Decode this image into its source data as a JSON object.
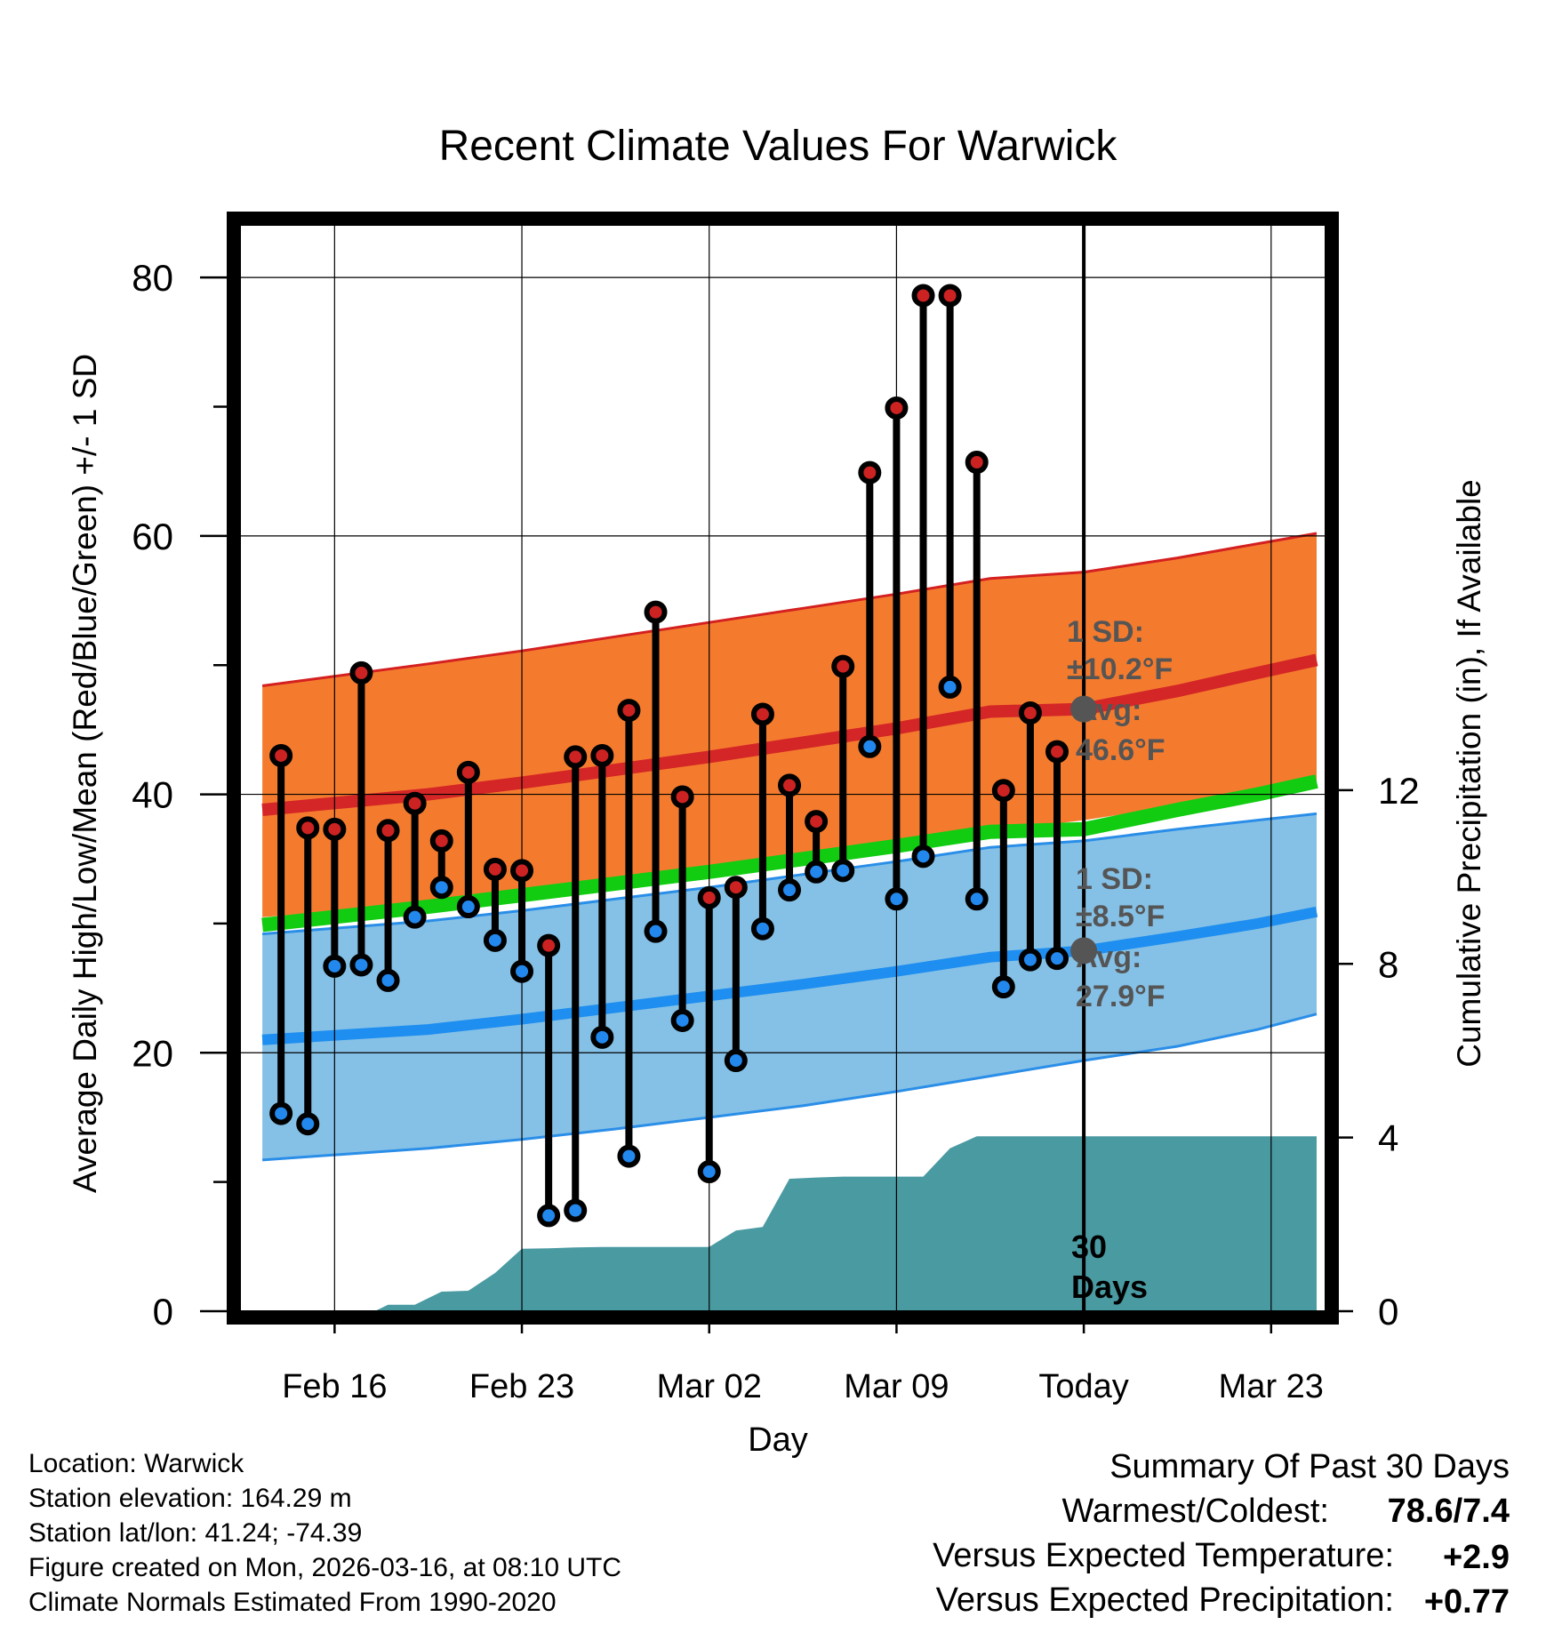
{
  "chart_data": {
    "type": "line",
    "title": "Recent Climate Values For Warwick",
    "xlabel": "Day",
    "ylabel": "Average Daily High/Low/Mean (Red/Blue/Green) +/- 1 SD",
    "ylabel_right": "Cumulative Precipitation (in), If Available",
    "ylim": [
      0,
      84
    ],
    "ylim_right": [
      0,
      25
    ],
    "xlim_day_offset": [
      -3.5,
      37
    ],
    "yticks_labeled": [
      "0",
      "20",
      "40",
      "60",
      "80"
    ],
    "yticks_right": [
      "0",
      "4",
      "8",
      "12"
    ],
    "xticks": [
      {
        "label": "Feb 16",
        "day": 0
      },
      {
        "label": "Feb 23",
        "day": 7
      },
      {
        "label": "Mar 02",
        "day": 14
      },
      {
        "label": "Mar 09",
        "day": 21
      },
      {
        "label": "Today",
        "day": 28
      },
      {
        "label": "Mar 23",
        "day": 35
      }
    ],
    "normals": {
      "day": [
        -2.7,
        3.5,
        7,
        10.5,
        14,
        17.5,
        21,
        24.5,
        28,
        31.5,
        34.5,
        36.7
      ],
      "high_mean": [
        38.8,
        40.0,
        40.9,
        41.9,
        42.9,
        44.0,
        45.1,
        46.4,
        46.6,
        48.0,
        49.4,
        50.4
      ],
      "high_upper": [
        48.4,
        50.1,
        51.1,
        52.2,
        53.3,
        54.4,
        55.5,
        56.7,
        57.2,
        58.3,
        59.4,
        60.2
      ],
      "high_lower": [
        30.5,
        31.5,
        32.3,
        33.2,
        34.0,
        35.0,
        36.0,
        37.1,
        38.0,
        39.1,
        40.2,
        41.0
      ],
      "mean": [
        29.9,
        31.3,
        32.2,
        33.1,
        34.0,
        35.0,
        36.0,
        37.1,
        37.3,
        38.8,
        40.0,
        41.0
      ],
      "low_mean": [
        21.0,
        21.8,
        22.6,
        23.5,
        24.4,
        25.3,
        26.3,
        27.4,
        27.9,
        29.0,
        30.0,
        30.9
      ],
      "low_upper": [
        29.2,
        30.2,
        31.0,
        31.9,
        32.8,
        33.8,
        34.8,
        35.9,
        36.4,
        37.3,
        38.0,
        38.5
      ],
      "low_lower": [
        11.7,
        12.6,
        13.3,
        14.1,
        15.0,
        15.9,
        17.0,
        18.2,
        19.4,
        20.5,
        21.8,
        23.0
      ]
    },
    "series": [
      {
        "name": "Daily High",
        "color": "#cc2222",
        "day": [
          -2,
          -1,
          0,
          1,
          2,
          3,
          4,
          5,
          6,
          7,
          8,
          9,
          10,
          11,
          12,
          13,
          14,
          15,
          16,
          17,
          18,
          19,
          20,
          21,
          22,
          23,
          24,
          25,
          26,
          27
        ],
        "values": [
          43.0,
          37.4,
          37.3,
          49.4,
          37.2,
          39.3,
          36.4,
          41.7,
          34.2,
          34.1,
          28.3,
          42.9,
          43.0,
          46.5,
          54.1,
          39.8,
          32.0,
          32.8,
          46.2,
          40.7,
          37.9,
          49.9,
          64.9,
          69.9,
          78.6,
          78.6,
          65.7,
          40.3,
          46.3,
          43.3
        ]
      },
      {
        "name": "Daily Low",
        "color": "#2288ee",
        "day": [
          -2,
          -1,
          0,
          1,
          2,
          3,
          4,
          5,
          6,
          7,
          8,
          9,
          10,
          11,
          12,
          13,
          14,
          15,
          16,
          17,
          18,
          19,
          20,
          21,
          22,
          23,
          24,
          25,
          26,
          27
        ],
        "values": [
          15.3,
          14.5,
          26.7,
          26.8,
          25.6,
          30.5,
          32.8,
          31.3,
          28.7,
          26.3,
          7.4,
          7.8,
          21.2,
          12.0,
          29.4,
          22.5,
          10.8,
          19.4,
          29.6,
          32.6,
          34.0,
          34.1,
          43.7,
          31.9,
          35.2,
          48.3,
          31.9,
          25.1,
          27.2,
          27.3
        ]
      },
      {
        "name": "Cumulative Precipitation",
        "color": "#4a9aa2",
        "day": [
          -2.7,
          1.5,
          2,
          3,
          4,
          5,
          6,
          7,
          8,
          9,
          10,
          11,
          12,
          13,
          14,
          15,
          16,
          17,
          18,
          19,
          20,
          21,
          22,
          23,
          24,
          25,
          26,
          27,
          28,
          36.7
        ],
        "values": [
          0,
          0,
          0.15,
          0.15,
          0.45,
          0.47,
          0.88,
          1.44,
          1.45,
          1.47,
          1.48,
          1.48,
          1.48,
          1.48,
          1.48,
          1.86,
          1.94,
          3.05,
          3.08,
          3.1,
          3.1,
          3.1,
          3.1,
          3.75,
          4.03,
          4.03,
          4.03,
          4.03,
          4.03,
          4.03
        ]
      }
    ],
    "annotations": {
      "high_sd_label": "1 SD:",
      "high_sd_value": "±10.2°F",
      "high_avg_label": "Avg:",
      "high_avg_value": "46.6°F",
      "high_avg_today": 46.6,
      "low_sd_label": "1 SD:",
      "low_sd_value": "±8.5°F",
      "low_avg_label": "Avg:",
      "low_avg_value": "27.9°F",
      "low_avg_today": 27.9,
      "days_line1": "30",
      "days_line2": "Days"
    }
  },
  "info": {
    "location": "Location: Warwick",
    "elevation": "Station elevation: 164.29 m",
    "latlon": "Station lat/lon: 41.24; -74.39",
    "created": "Figure created on Mon, 2026-03-16, at 08:10 UTC",
    "normals": "Climate Normals Estimated From 1990-2020"
  },
  "summary": {
    "title": "Summary Of Past 30 Days",
    "warmest_label": "Warmest/Coldest:",
    "warmest_value": "78.6/7.4",
    "temp_label": "Versus Expected Temperature:",
    "temp_value": "+2.9",
    "temp_color": "#dd2222",
    "precip_label": "Versus Expected Precipitation:",
    "precip_value": "+0.77",
    "precip_color": "#11bb11"
  }
}
